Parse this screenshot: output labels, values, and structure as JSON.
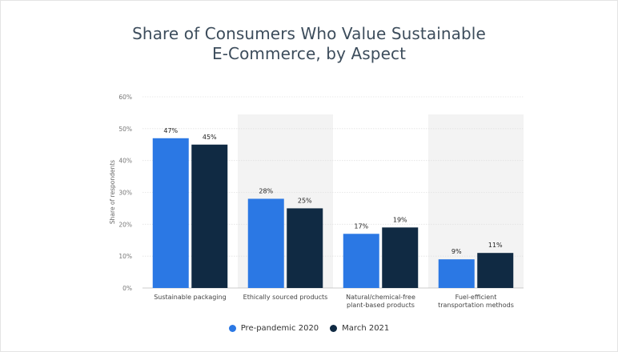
{
  "title_line1": "Share of Consumers Who Value Sustainable",
  "title_line2": "E-Commerce, by Aspect",
  "colors": {
    "pre": "#2b78e4",
    "mar": "#102a43",
    "grid": "#e2e2e2",
    "shade": "#f3f3f3"
  },
  "chart_data": {
    "type": "bar",
    "title": "Share of Consumers Who Value Sustainable E-Commerce, by Aspect",
    "ylabel": "Share of respondents",
    "ylim": [
      0,
      60
    ],
    "yticks": [
      "0%",
      "10%",
      "20%",
      "30%",
      "40%",
      "50%",
      "60%"
    ],
    "categories": [
      [
        "Sustainable packaging"
      ],
      [
        "Ethically sourced products"
      ],
      [
        "Natural/chemical-free",
        "plant-based products"
      ],
      [
        "Fuel-efficient",
        "transportation methods"
      ]
    ],
    "series": [
      {
        "name": "Pre-pandemic 2020",
        "values": [
          47,
          28,
          17,
          9
        ],
        "labels": [
          "47%",
          "28%",
          "17%",
          "9%"
        ]
      },
      {
        "name": "March 2021",
        "values": [
          45,
          25,
          19,
          11
        ],
        "labels": [
          "45%",
          "25%",
          "19%",
          "11%"
        ]
      }
    ],
    "legend": "bottom-center",
    "grid": true
  }
}
